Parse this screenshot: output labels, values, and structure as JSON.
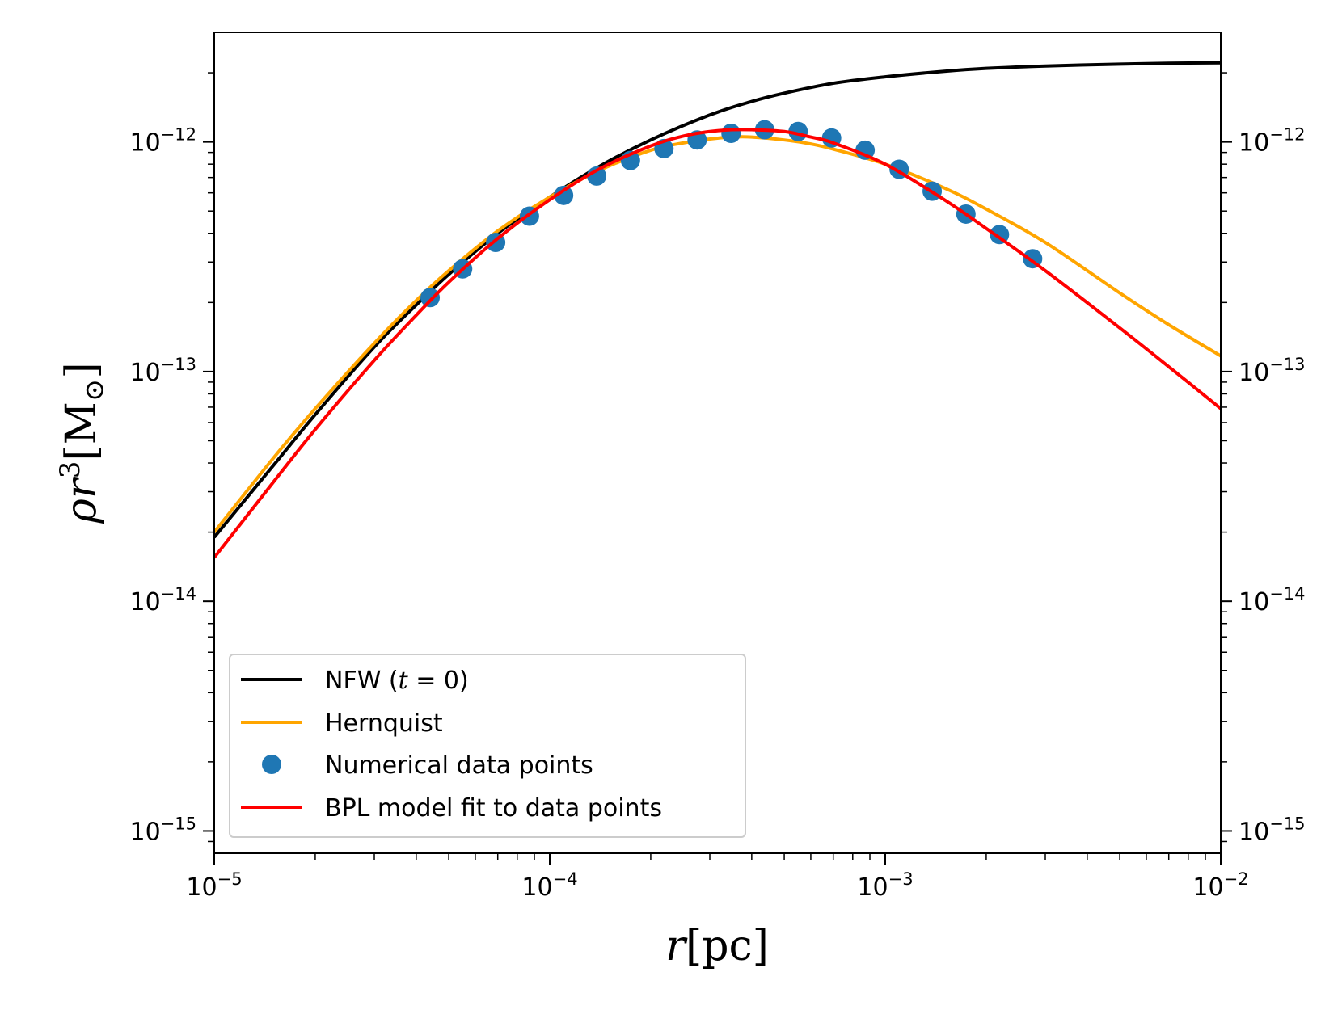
{
  "chart_data": {
    "type": "line",
    "x_scale": "log",
    "y_scale": "log",
    "xlim": [
      1e-05,
      0.01
    ],
    "ylim": [
      8e-16,
      3e-12
    ],
    "xlabel": {
      "var": "r",
      "unit": "[pc]"
    },
    "ylabel": {
      "var": "ρr",
      "exp": "3",
      "unit": "[M",
      "sub": "⊙",
      "close": "]"
    },
    "x_ticks": [
      {
        "value": 1e-05,
        "base": "10",
        "exp": "−5"
      },
      {
        "value": 0.0001,
        "base": "10",
        "exp": "−4"
      },
      {
        "value": 0.001,
        "base": "10",
        "exp": "−3"
      },
      {
        "value": 0.01,
        "base": "10",
        "exp": "−2"
      }
    ],
    "y_ticks": [
      {
        "value": 1e-15,
        "base": "10",
        "exp": "−15"
      },
      {
        "value": 1e-14,
        "base": "10",
        "exp": "−14"
      },
      {
        "value": 1e-13,
        "base": "10",
        "exp": "−13"
      },
      {
        "value": 1e-12,
        "base": "10",
        "exp": "−12"
      }
    ],
    "series": [
      {
        "name": "NFW (t = 0)",
        "kind": "line",
        "color": "#000000",
        "x": [
          1e-05,
          1.5e-05,
          2e-05,
          3e-05,
          4e-05,
          5e-05,
          7e-05,
          0.0001,
          0.00014,
          0.0002,
          0.0003,
          0.0004,
          0.0005,
          0.0007,
          0.001,
          0.0015,
          0.002,
          0.003,
          0.005,
          0.007,
          0.01
        ],
        "y": [
          1.9e-14,
          3.9e-14,
          6.5e-14,
          1.28e-13,
          1.95e-13,
          2.65e-13,
          4e-13,
          5.75e-13,
          7.8e-13,
          1.02e-12,
          1.31e-12,
          1.5e-12,
          1.63e-12,
          1.8e-12,
          1.92e-12,
          2.03e-12,
          2.09e-12,
          2.14e-12,
          2.18e-12,
          2.2e-12,
          2.21e-12
        ]
      },
      {
        "name": "Hernquist",
        "kind": "line",
        "color": "#ffa500",
        "x": [
          1e-05,
          1.5e-05,
          2e-05,
          3e-05,
          4e-05,
          5e-05,
          7e-05,
          0.0001,
          0.00014,
          0.0002,
          0.00025,
          0.0003,
          0.00035,
          0.0004,
          0.0005,
          0.0006,
          0.0007,
          0.001,
          0.0015,
          0.002,
          0.003,
          0.005,
          0.007,
          0.01
        ],
        "y": [
          2e-14,
          4.2e-14,
          6.9e-14,
          1.33e-13,
          2.04e-13,
          2.75e-13,
          4.1e-13,
          5.75e-13,
          7.5e-13,
          9.2e-13,
          9.9e-13,
          1.03e-12,
          1.05e-12,
          1.05e-12,
          1.02e-12,
          9.8e-13,
          9.3e-13,
          8e-13,
          6.3e-13,
          5.1e-13,
          3.65e-13,
          2.2e-13,
          1.6e-13,
          1.17e-13
        ]
      },
      {
        "name": "BPL model fit to data points",
        "kind": "line",
        "color": "#ff0000",
        "x": [
          1e-05,
          1.5e-05,
          2e-05,
          3e-05,
          4e-05,
          5e-05,
          7e-05,
          0.0001,
          0.00014,
          0.0002,
          0.00025,
          0.0003,
          0.00035,
          0.0004,
          0.0005,
          0.0006,
          0.0007,
          0.001,
          0.0015,
          0.002,
          0.003,
          0.005,
          0.007,
          0.01
        ],
        "y": [
          1.55e-14,
          3.3e-14,
          5.6e-14,
          1.12e-13,
          1.76e-13,
          2.45e-13,
          3.8e-13,
          5.6e-13,
          7.6e-13,
          9.6e-13,
          1.06e-12,
          1.11e-12,
          1.13e-12,
          1.13e-12,
          1.11e-12,
          1.05e-12,
          9.9e-13,
          8e-13,
          5.6e-13,
          4.2e-13,
          2.75e-13,
          1.55e-13,
          1.05e-13,
          6.9e-14
        ]
      },
      {
        "name": "Numerical data points",
        "kind": "scatter",
        "color": "#1f77b4",
        "x": [
          4.4e-05,
          5.5e-05,
          6.9e-05,
          8.7e-05,
          0.00011,
          0.000138,
          0.000174,
          0.000219,
          0.000275,
          0.000347,
          0.000437,
          0.00055,
          0.000692,
          0.000871,
          0.0011,
          0.00138,
          0.00174,
          0.00219,
          0.00275
        ],
        "y": [
          2.1e-13,
          2.8e-13,
          3.65e-13,
          4.75e-13,
          5.85e-13,
          7.1e-13,
          8.3e-13,
          9.35e-13,
          1.02e-12,
          1.09e-12,
          1.13e-12,
          1.11e-12,
          1.04e-12,
          9.2e-13,
          7.6e-13,
          6.1e-13,
          4.85e-13,
          3.95e-13,
          3.1e-13
        ]
      }
    ],
    "legend": {
      "position": "lower-left",
      "entries": [
        {
          "label_pre": "NFW (",
          "label_var": "t",
          "label_post": " = 0)",
          "color": "#000000",
          "marker": "line"
        },
        {
          "label": "Hernquist",
          "color": "#ffa500",
          "marker": "line"
        },
        {
          "label": "Numerical data points",
          "color": "#1f77b4",
          "marker": "dot"
        },
        {
          "label": "BPL model fit to data points",
          "color": "#ff0000",
          "marker": "line"
        }
      ]
    }
  }
}
